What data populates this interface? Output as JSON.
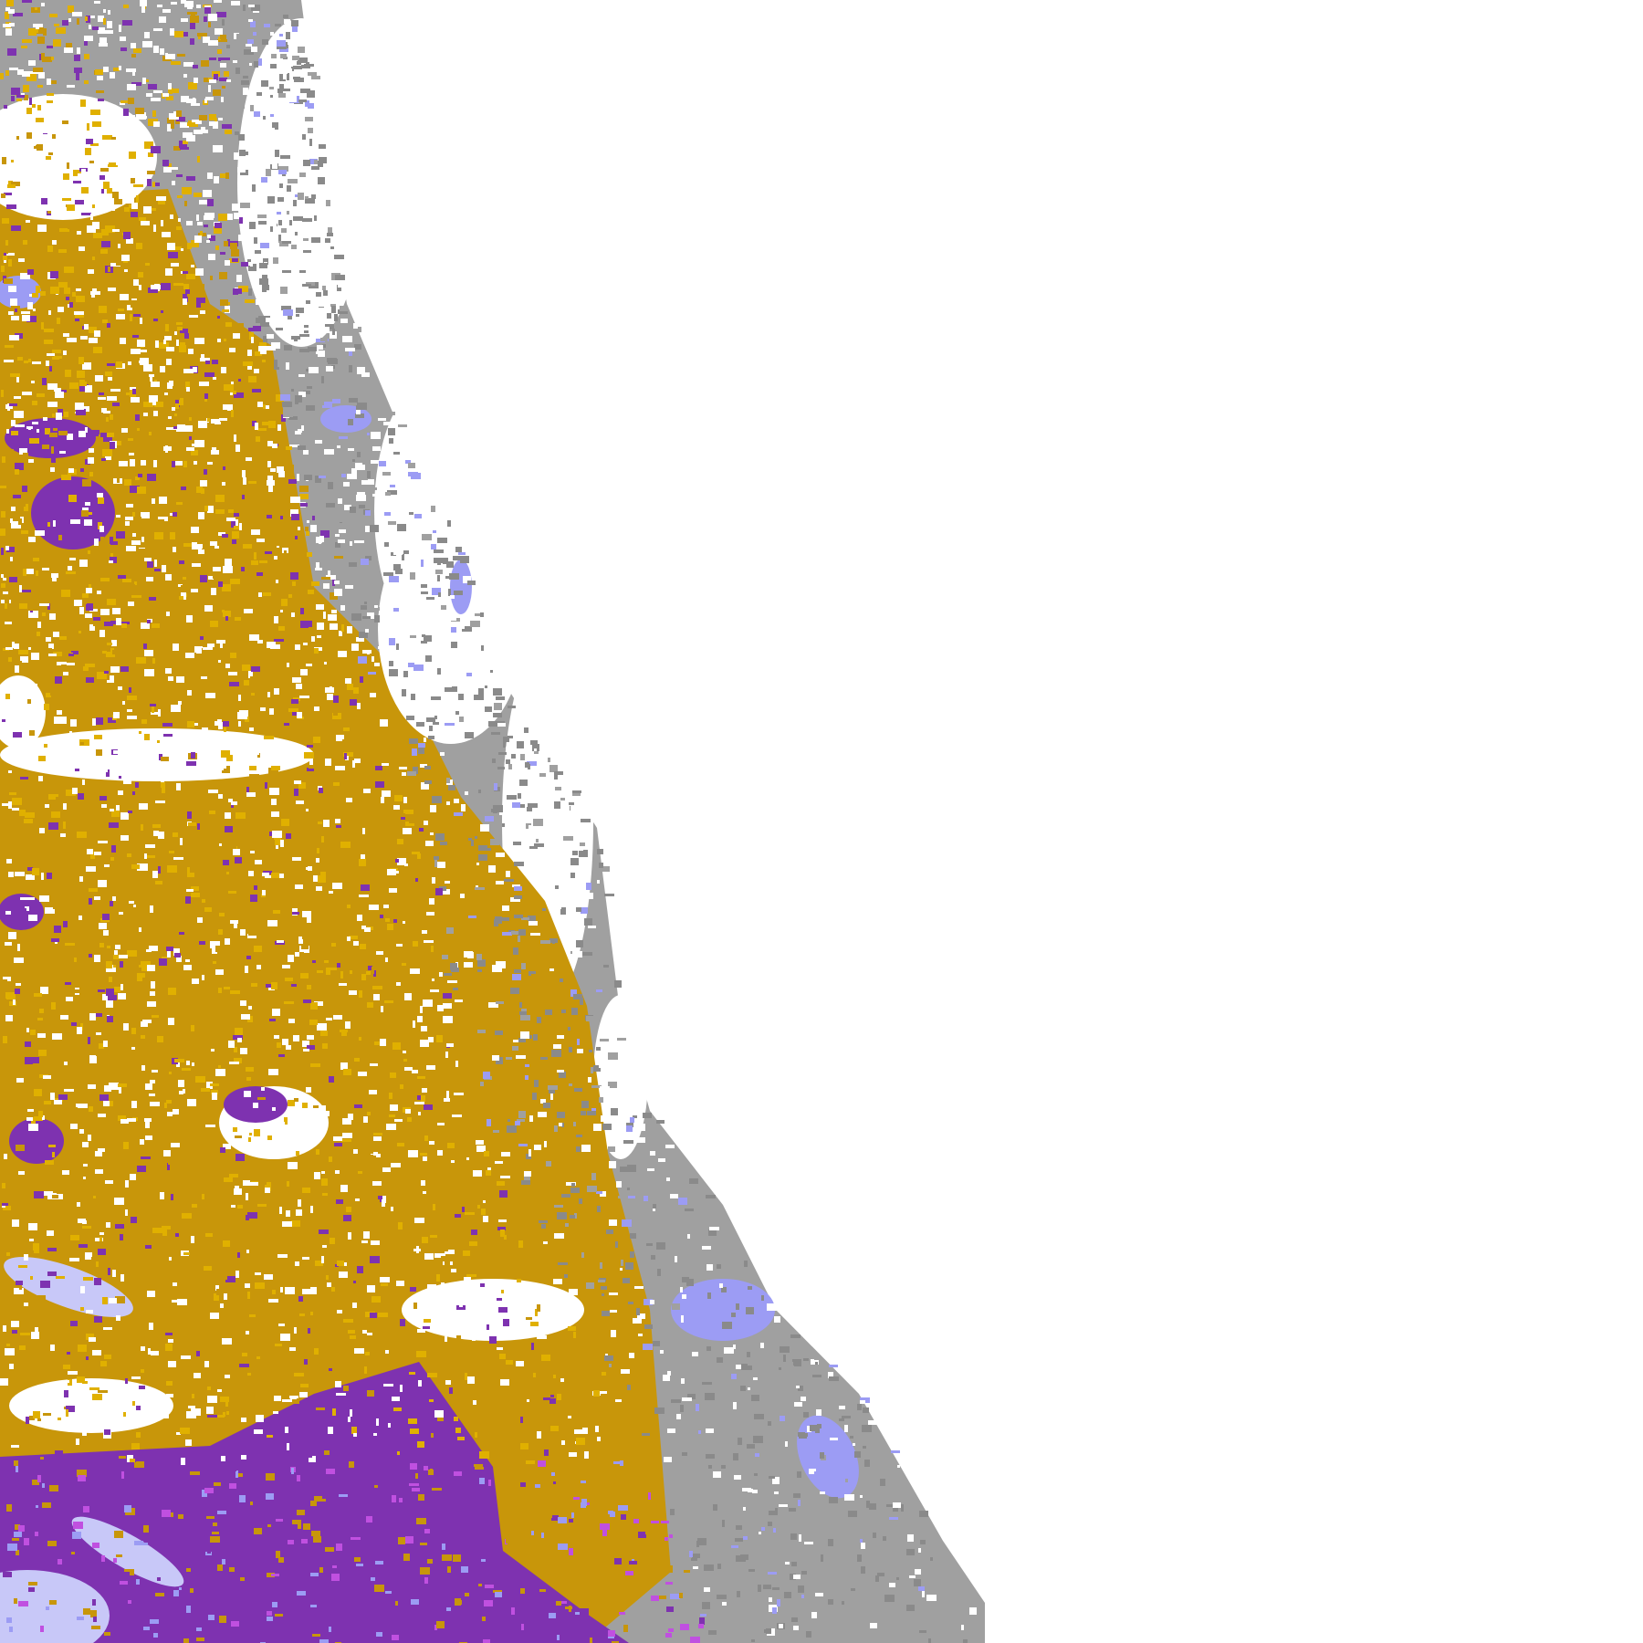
{
  "map": {
    "background": "#ffffff",
    "palette": {
      "gold": "#c8960a",
      "gold_light": "#e0b000",
      "purple": "#7e32b0",
      "magenta": "#c050e0",
      "light_blue": "#9c9cf4",
      "lavender": "#c8c8f8",
      "gray": "#a0a0a0",
      "dark_gray": "#8a8a8a"
    }
  }
}
